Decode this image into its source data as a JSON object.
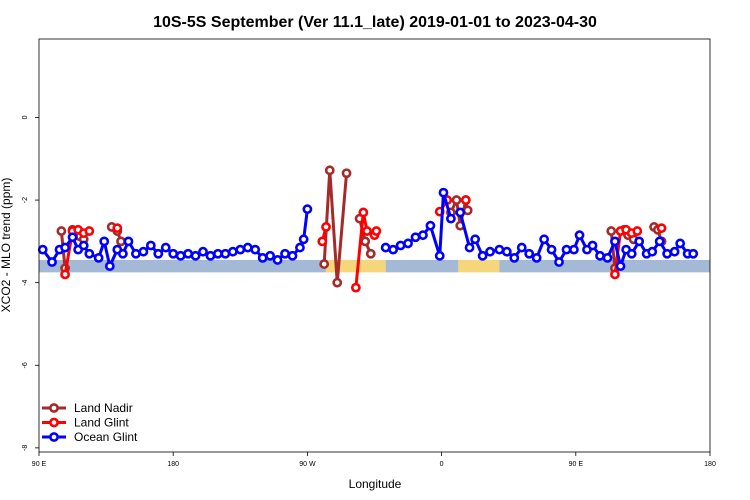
{
  "chart_data": {
    "type": "line",
    "title": "10S-5S September (Ver 11.1_late)   2019-01-01 to 2023-04-30",
    "xlabel": "Longitude",
    "ylabel": "XCO2 - MLO trend (ppm)",
    "xlim": [
      90,
      450
    ],
    "ylim": [
      -8.1,
      1.9
    ],
    "x_ticks": [
      {
        "value": 90,
        "label": "90 E"
      },
      {
        "value": 162,
        "label": "180"
      },
      {
        "value": 234,
        "label": "90 W"
      },
      {
        "value": 306,
        "label": "0"
      },
      {
        "value": 378,
        "label": "90 E"
      },
      {
        "value": 450,
        "label": "180"
      }
    ],
    "y_ticks": [
      {
        "value": 0,
        "label": "0"
      },
      {
        "value": -2,
        "label": "-2"
      },
      {
        "value": -4,
        "label": "-4"
      },
      {
        "value": -6,
        "label": "-6"
      },
      {
        "value": -8,
        "label": "-8"
      }
    ],
    "background_band": {
      "y_range": [
        -3.75,
        -3.45
      ],
      "segments": [
        {
          "x0": 90,
          "x1": 244,
          "color": "#a3b9d6"
        },
        {
          "x0": 244,
          "x1": 251,
          "color": "#f5d67a"
        },
        {
          "x0": 251,
          "x1": 276,
          "color": "#f5d67a"
        },
        {
          "x0": 276,
          "x1": 315,
          "color": "#a3b9d6"
        },
        {
          "x0": 315,
          "x1": 337,
          "color": "#f5d67a"
        },
        {
          "x0": 337,
          "x1": 450,
          "color": "#a3b9d6"
        }
      ]
    },
    "legend_position": "bottom-left",
    "series": [
      {
        "name": "Land Nadir",
        "color": "#a52a2a",
        "segments": [
          [
            [
              102,
              -2.75
            ],
            [
              104,
              -3.65
            ]
          ],
          [
            [
              108,
              -2.72
            ],
            [
              112,
              -2.88
            ],
            [
              114,
              -2.95
            ]
          ],
          [
            [
              129,
              -2.65
            ],
            [
              132,
              -2.75
            ],
            [
              134,
              -3.0
            ]
          ],
          [
            [
              243,
              -3.55
            ],
            [
              246,
              -1.28
            ],
            [
              250,
              -4.0
            ],
            [
              255,
              -1.35
            ]
          ],
          [
            [
              262,
              -2.45
            ],
            [
              265,
              -3.0
            ],
            [
              268,
              -3.3
            ]
          ],
          [
            [
              311,
              -2.3
            ],
            [
              314,
              -2.0
            ],
            [
              316,
              -2.62
            ],
            [
              319,
              -2.0
            ],
            [
              320,
              -2.25
            ]
          ],
          [
            [
              397,
              -2.75
            ],
            [
              399,
              -3.65
            ]
          ],
          [
            [
              404,
              -2.72
            ],
            [
              406,
              -2.85
            ],
            [
              409,
              -2.95
            ]
          ],
          [
            [
              420,
              -2.65
            ],
            [
              422,
              -2.72
            ],
            [
              424,
              -3.0
            ]
          ]
        ]
      },
      {
        "name": "Land Glint",
        "color": "#ff0000",
        "segments": [
          [
            [
              104,
              -3.8
            ],
            [
              108,
              -2.75
            ],
            [
              111,
              -2.72
            ],
            [
              114,
              -2.8
            ],
            [
              117,
              -2.75
            ]
          ],
          [
            [
              132,
              -2.68
            ]
          ],
          [
            [
              242,
              -3.0
            ],
            [
              244,
              -2.65
            ]
          ],
          [
            [
              260,
              -4.12
            ],
            [
              264,
              -2.3
            ],
            [
              266,
              -2.75
            ],
            [
              270,
              -2.85
            ],
            [
              271,
              -2.75
            ]
          ],
          [
            [
              305,
              -2.28
            ],
            [
              309,
              -2.0
            ]
          ],
          [
            [
              319,
              -2.0
            ]
          ],
          [
            [
              399,
              -3.8
            ],
            [
              402,
              -2.75
            ],
            [
              405,
              -2.72
            ],
            [
              408,
              -2.8
            ],
            [
              411,
              -2.75
            ]
          ],
          [
            [
              424,
              -2.68
            ]
          ]
        ]
      },
      {
        "name": "Ocean Glint",
        "color": "#0000ff",
        "segments": [
          [
            [
              92,
              -3.2
            ],
            [
              97,
              -3.5
            ],
            [
              101,
              -3.2
            ],
            [
              104,
              -3.15
            ],
            [
              108,
              -2.9
            ],
            [
              111,
              -3.2
            ],
            [
              114,
              -3.1
            ],
            [
              117,
              -3.3
            ],
            [
              122,
              -3.4
            ],
            [
              125,
              -3.0
            ],
            [
              128,
              -3.6
            ],
            [
              132,
              -3.2
            ],
            [
              135,
              -3.3
            ],
            [
              138,
              -3.0
            ],
            [
              142,
              -3.3
            ],
            [
              146,
              -3.25
            ],
            [
              150,
              -3.1
            ],
            [
              154,
              -3.3
            ],
            [
              158,
              -3.15
            ],
            [
              162,
              -3.3
            ],
            [
              166,
              -3.35
            ],
            [
              170,
              -3.3
            ],
            [
              174,
              -3.35
            ],
            [
              178,
              -3.25
            ],
            [
              182,
              -3.35
            ],
            [
              186,
              -3.3
            ],
            [
              190,
              -3.3
            ],
            [
              194,
              -3.25
            ],
            [
              198,
              -3.2
            ],
            [
              202,
              -3.15
            ],
            [
              206,
              -3.2
            ],
            [
              210,
              -3.4
            ],
            [
              214,
              -3.35
            ],
            [
              218,
              -3.45
            ],
            [
              222,
              -3.3
            ],
            [
              226,
              -3.35
            ],
            [
              230,
              -3.15
            ],
            [
              232,
              -2.95
            ],
            [
              234,
              -2.22
            ]
          ],
          [
            [
              276,
              -3.15
            ],
            [
              280,
              -3.2
            ],
            [
              284,
              -3.1
            ],
            [
              288,
              -3.05
            ],
            [
              292,
              -2.9
            ],
            [
              296,
              -2.85
            ],
            [
              300,
              -2.62
            ],
            [
              305,
              -3.35
            ],
            [
              307,
              -1.82
            ],
            [
              311,
              -2.45
            ]
          ],
          [
            [
              316,
              -2.3
            ],
            [
              321,
              -3.15
            ],
            [
              324,
              -2.95
            ],
            [
              328,
              -3.35
            ],
            [
              332,
              -3.25
            ],
            [
              337,
              -3.2
            ],
            [
              341,
              -3.25
            ],
            [
              345,
              -3.4
            ],
            [
              349,
              -3.15
            ],
            [
              353,
              -3.3
            ],
            [
              357,
              -3.4
            ],
            [
              361,
              -2.95
            ],
            [
              365,
              -3.2
            ],
            [
              369,
              -3.5
            ],
            [
              373,
              -3.2
            ],
            [
              377,
              -3.2
            ],
            [
              380,
              -2.85
            ],
            [
              384,
              -3.2
            ],
            [
              387,
              -3.1
            ],
            [
              391,
              -3.35
            ],
            [
              395,
              -3.4
            ],
            [
              399,
              -3.0
            ],
            [
              402,
              -3.6
            ],
            [
              405,
              -3.2
            ],
            [
              408,
              -3.3
            ],
            [
              412,
              -3.0
            ],
            [
              416,
              -3.3
            ],
            [
              419,
              -3.25
            ],
            [
              423,
              -3.0
            ],
            [
              427,
              -3.3
            ],
            [
              431,
              -3.25
            ],
            [
              434,
              -3.05
            ],
            [
              438,
              -3.3
            ],
            [
              441,
              -3.3
            ]
          ]
        ]
      }
    ]
  }
}
